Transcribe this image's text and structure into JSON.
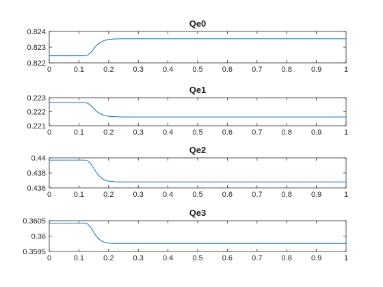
{
  "chart_data": [
    {
      "type": "line",
      "title": "Qe0",
      "xlabel": "",
      "ylabel": "",
      "xlim": [
        0,
        1
      ],
      "ylim": [
        0.822,
        0.824
      ],
      "xticks": [
        0,
        0.1,
        0.2,
        0.3,
        0.4,
        0.5,
        0.6,
        0.7,
        0.8,
        0.9,
        1
      ],
      "xtick_labels": [
        "0",
        "0.1",
        "0.2",
        "0.3",
        "0.4",
        "0.5",
        "0.6",
        "0.7",
        "0.8",
        "0.9",
        "1"
      ],
      "yticks": [
        0.822,
        0.823,
        0.824
      ],
      "ytick_labels": [
        "0.822",
        "0.823",
        "0.824"
      ],
      "grid": false,
      "series": [
        {
          "color": "#0072BD",
          "x": [
            0,
            0.12,
            0.13,
            0.14,
            0.15,
            0.16,
            0.17,
            0.18,
            0.19,
            0.2,
            0.22,
            0.25,
            0.3,
            1
          ],
          "y": [
            0.82245,
            0.82245,
            0.8225,
            0.82265,
            0.8229,
            0.82312,
            0.82328,
            0.82338,
            0.82345,
            0.82349,
            0.82352,
            0.82353,
            0.82353,
            0.82353
          ]
        }
      ]
    },
    {
      "type": "line",
      "title": "Qe1",
      "xlabel": "",
      "ylabel": "",
      "xlim": [
        0,
        1
      ],
      "ylim": [
        0.221,
        0.223
      ],
      "xticks": [
        0,
        0.1,
        0.2,
        0.3,
        0.4,
        0.5,
        0.6,
        0.7,
        0.8,
        0.9,
        1
      ],
      "xtick_labels": [
        "0",
        "0.1",
        "0.2",
        "0.3",
        "0.4",
        "0.5",
        "0.6",
        "0.7",
        "0.8",
        "0.9",
        "1"
      ],
      "yticks": [
        0.221,
        0.222,
        0.223
      ],
      "ytick_labels": [
        "0.221",
        "0.222",
        "0.223"
      ],
      "grid": false,
      "series": [
        {
          "color": "#0072BD",
          "x": [
            0,
            0.12,
            0.13,
            0.14,
            0.15,
            0.16,
            0.17,
            0.18,
            0.19,
            0.2,
            0.22,
            0.25,
            0.3,
            1
          ],
          "y": [
            0.22265,
            0.22265,
            0.2226,
            0.22245,
            0.22222,
            0.22202,
            0.22188,
            0.22178,
            0.22172,
            0.22168,
            0.22165,
            0.22163,
            0.22163,
            0.22163
          ]
        }
      ]
    },
    {
      "type": "line",
      "title": "Qe2",
      "xlabel": "",
      "ylabel": "",
      "xlim": [
        0,
        1
      ],
      "ylim": [
        0.436,
        0.44
      ],
      "xticks": [
        0,
        0.1,
        0.2,
        0.3,
        0.4,
        0.5,
        0.6,
        0.7,
        0.8,
        0.9,
        1
      ],
      "xtick_labels": [
        "0",
        "0.1",
        "0.2",
        "0.3",
        "0.4",
        "0.5",
        "0.6",
        "0.7",
        "0.8",
        "0.9",
        "1"
      ],
      "yticks": [
        0.436,
        0.438,
        0.44
      ],
      "ytick_labels": [
        "0.436",
        "0.438",
        "0.44"
      ],
      "grid": false,
      "series": [
        {
          "color": "#0072BD",
          "x": [
            0,
            0.12,
            0.13,
            0.14,
            0.15,
            0.16,
            0.17,
            0.18,
            0.19,
            0.2,
            0.22,
            0.25,
            0.3,
            1
          ],
          "y": [
            0.4397,
            0.4397,
            0.4396,
            0.4392,
            0.4386,
            0.438,
            0.43755,
            0.4372,
            0.437,
            0.4369,
            0.43682,
            0.4368,
            0.4368,
            0.4368
          ]
        }
      ]
    },
    {
      "type": "line",
      "title": "Qe3",
      "xlabel": "",
      "ylabel": "",
      "xlim": [
        0,
        1
      ],
      "ylim": [
        0.3595,
        0.3605
      ],
      "xticks": [
        0,
        0.1,
        0.2,
        0.3,
        0.4,
        0.5,
        0.6,
        0.7,
        0.8,
        0.9,
        1
      ],
      "xtick_labels": [
        "0",
        "0.1",
        "0.2",
        "0.3",
        "0.4",
        "0.5",
        "0.6",
        "0.7",
        "0.8",
        "0.9",
        "1"
      ],
      "yticks": [
        0.3595,
        0.36,
        0.3605
      ],
      "ytick_labels": [
        "0.3595",
        "0.36",
        "0.3605"
      ],
      "grid": false,
      "series": [
        {
          "color": "#0072BD",
          "x": [
            0,
            0.12,
            0.13,
            0.14,
            0.15,
            0.16,
            0.17,
            0.18,
            0.19,
            0.2,
            0.22,
            0.25,
            0.3,
            1
          ],
          "y": [
            0.36042,
            0.36042,
            0.36039,
            0.36028,
            0.36012,
            0.35998,
            0.35988,
            0.35982,
            0.35979,
            0.35977,
            0.35976,
            0.35976,
            0.35976,
            0.35976
          ]
        }
      ]
    }
  ]
}
